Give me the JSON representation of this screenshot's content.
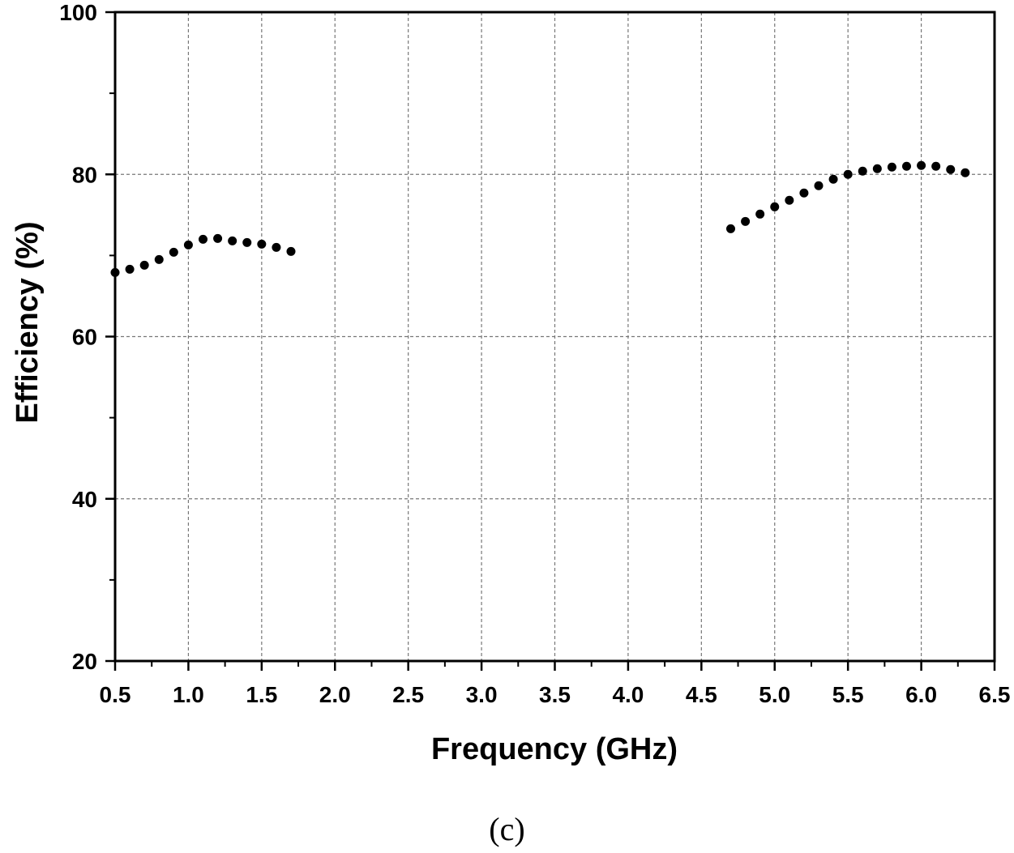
{
  "chart_data": {
    "type": "scatter",
    "title": "",
    "xlabel": "Frequency (GHz)",
    "ylabel": "Efficiency (%)",
    "xlim": [
      0.5,
      6.5
    ],
    "ylim": [
      20,
      100
    ],
    "xticks": [
      "0.5",
      "1.0",
      "1.5",
      "2.0",
      "2.5",
      "3.0",
      "3.5",
      "4.0",
      "4.5",
      "5.0",
      "5.5",
      "6.0",
      "6.5"
    ],
    "yticks": [
      "20",
      "40",
      "60",
      "80",
      "100"
    ],
    "grid": true,
    "legend": "none",
    "marker_color": "#000000",
    "series": [
      {
        "x": [
          0.5,
          0.6,
          0.7,
          0.8,
          0.9,
          1.0,
          1.1,
          1.2,
          1.3,
          1.4,
          1.5,
          1.6,
          1.7
        ],
        "y": [
          67.9,
          68.3,
          68.8,
          69.5,
          70.4,
          71.3,
          72.0,
          72.1,
          71.8,
          71.6,
          71.4,
          71.0,
          70.5
        ]
      },
      {
        "x": [
          4.7,
          4.8,
          4.9,
          5.0,
          5.1,
          5.2,
          5.3,
          5.4,
          5.5,
          5.6,
          5.7,
          5.8,
          5.9,
          6.0,
          6.1,
          6.2,
          6.3
        ],
        "y": [
          73.3,
          74.2,
          75.1,
          76.0,
          76.8,
          77.7,
          78.6,
          79.4,
          80.0,
          80.4,
          80.7,
          80.9,
          81.0,
          81.1,
          81.0,
          80.6,
          80.2
        ]
      }
    ]
  },
  "caption": "(c)"
}
